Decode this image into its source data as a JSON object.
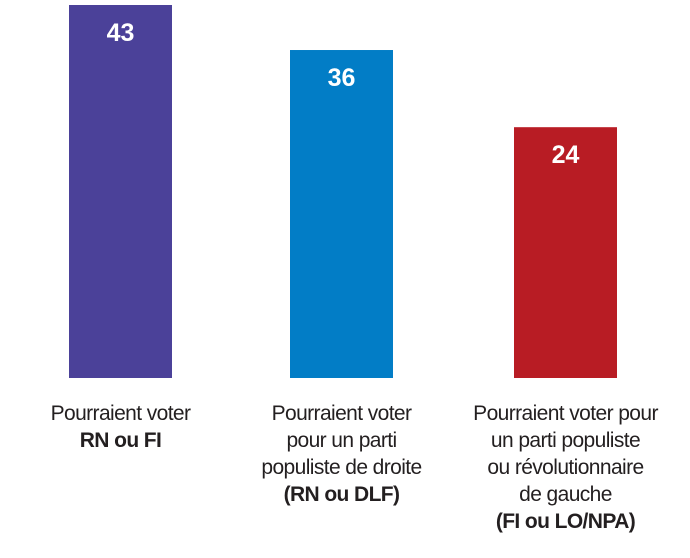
{
  "chart_data": {
    "type": "bar",
    "title": "",
    "xlabel": "",
    "ylabel": "",
    "ylim": [
      -15,
      43
    ],
    "grid": false,
    "categories": [
      "Pourraient voter RN ou FI",
      "Pourraient voter pour un parti populiste de droite (RN ou DLF)",
      "Pourraient voter pour un parti populiste ou révolutionnaire de gauche (FI ou LO/NPA)"
    ],
    "values": [
      43,
      36,
      24
    ],
    "value_labels": [
      "43",
      "36",
      "24"
    ],
    "colors": [
      "#4b4199",
      "#027dc6",
      "#b81c24"
    ],
    "category_lines": [
      [
        {
          "text": "Pourraient voter",
          "bold": false
        },
        {
          "text": "RN ou FI",
          "bold": true
        }
      ],
      [
        {
          "text": "Pourraient voter",
          "bold": false
        },
        {
          "text": "pour un parti",
          "bold": false
        },
        {
          "text": "populiste de droite",
          "bold": false
        },
        {
          "text": "(RN ou DLF)",
          "bold": true
        }
      ],
      [
        {
          "text": "Pourraient voter pour",
          "bold": false
        },
        {
          "text": "un parti populiste",
          "bold": false
        },
        {
          "text": "ou révolutionnaire",
          "bold": false
        },
        {
          "text": "de gauche",
          "bold": false
        },
        {
          "text": "(FI ou LO/NPA)",
          "bold": true
        }
      ]
    ]
  }
}
